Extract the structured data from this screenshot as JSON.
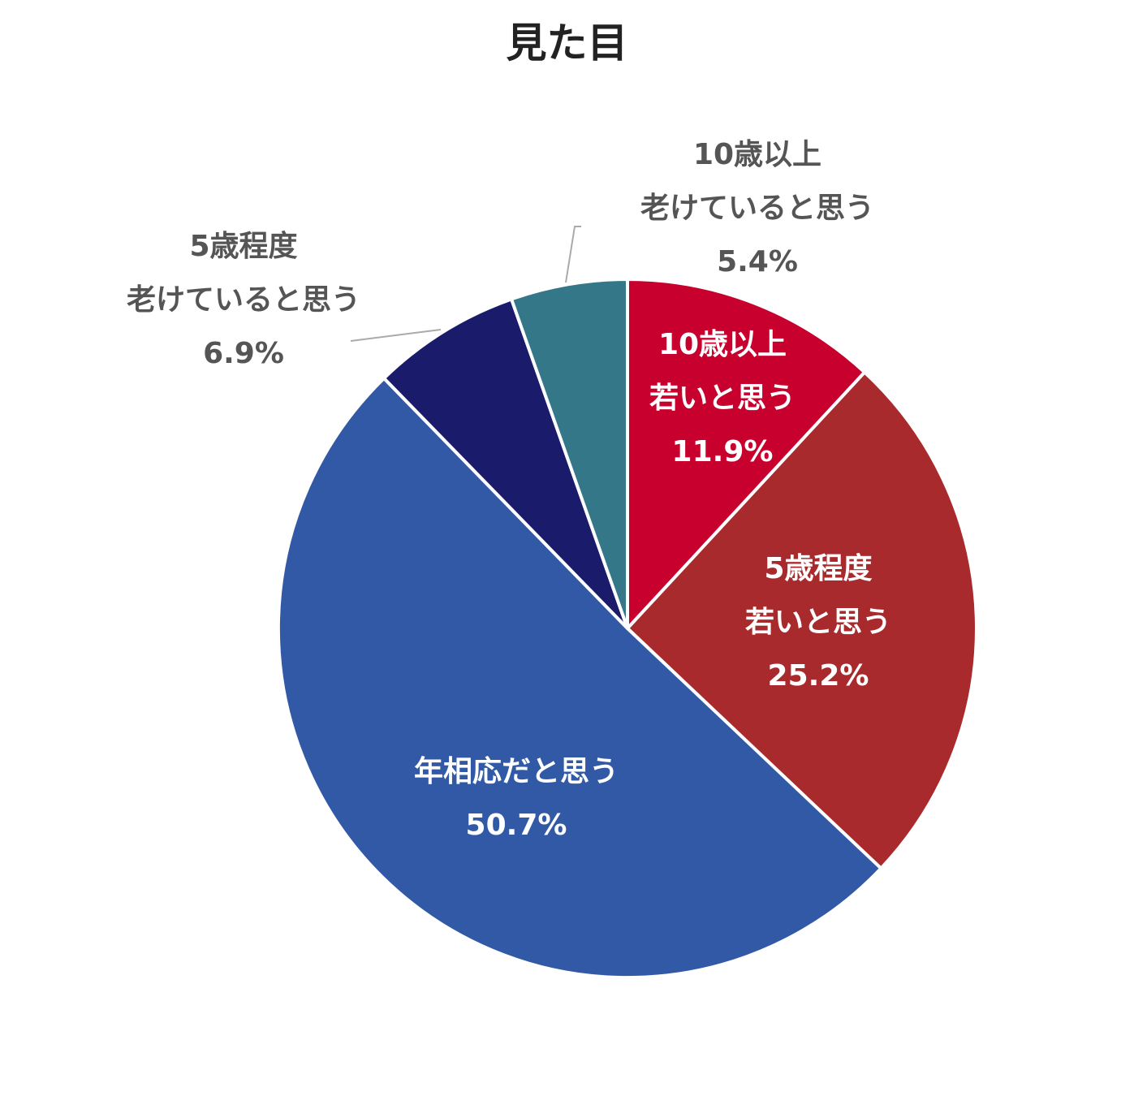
{
  "chart_data": {
    "type": "pie",
    "title": "見た目",
    "start_angle_deg": 0,
    "direction": "clockwise",
    "slices": [
      {
        "label_lines": [
          "10歳以上",
          "若いと思う"
        ],
        "value": 11.9,
        "value_label": "11.9%",
        "color": "#c8002e",
        "label_color": "#ffffff",
        "label_placement": "inside"
      },
      {
        "label_lines": [
          "5歳程度",
          "若いと思う"
        ],
        "value": 25.2,
        "value_label": "25.2%",
        "color": "#a82a2c",
        "label_color": "#ffffff",
        "label_placement": "inside"
      },
      {
        "label_lines": [
          "年相応だと思う"
        ],
        "value": 50.7,
        "value_label": "50.7%",
        "color": "#3159a6",
        "label_color": "#ffffff",
        "label_placement": "inside"
      },
      {
        "label_lines": [
          "5歳程度",
          "老けていると思う"
        ],
        "value": 6.9,
        "value_label": "6.9%",
        "color": "#1a1b6b",
        "label_color": "#555555",
        "label_placement": "outside"
      },
      {
        "label_lines": [
          "10歳以上",
          "老けていると思う"
        ],
        "value": 5.4,
        "value_label": "5.4%",
        "color": "#337788",
        "label_color": "#555555",
        "label_placement": "outside"
      }
    ],
    "separator_color": "#ffffff",
    "leader_line_color": "#aaaaaa"
  }
}
